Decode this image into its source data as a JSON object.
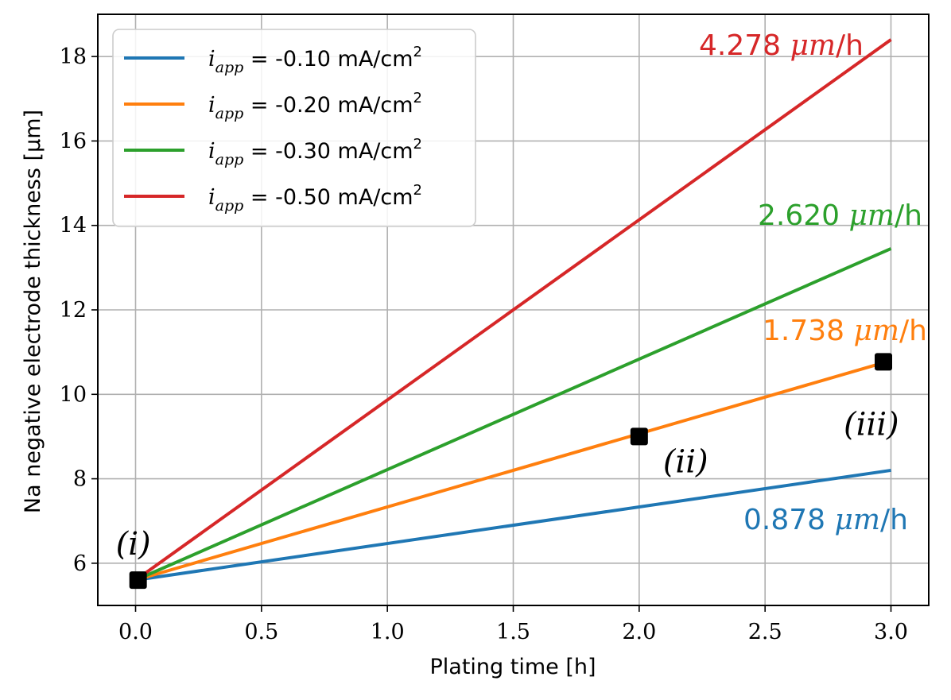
{
  "chart_data": {
    "type": "line",
    "xlabel": "Plating time [h]",
    "ylabel": "Na negative electrode thickness [μm]",
    "xlim": [
      -0.15,
      3.15
    ],
    "ylim": [
      5.0,
      19.0
    ],
    "xticks": [
      0.0,
      0.5,
      1.0,
      1.5,
      2.0,
      2.5,
      3.0
    ],
    "xtick_labels": [
      "0.0",
      "0.5",
      "1.0",
      "1.5",
      "2.0",
      "2.5",
      "3.0"
    ],
    "yticks": [
      6,
      8,
      10,
      12,
      14,
      16,
      18
    ],
    "ytick_labels": [
      "6",
      "8",
      "10",
      "12",
      "14",
      "16",
      "18"
    ],
    "grid": true,
    "legend_position": "top-left",
    "series": [
      {
        "name": "i_app = -0.10 mA/cm²",
        "legend_symbol": "i",
        "legend_subscript": "app",
        "legend_value": " = -0.10 mA/cm",
        "legend_sup": "2",
        "color": "#1f77b4",
        "x": [
          0.0,
          3.0
        ],
        "y": [
          5.6,
          8.2
        ],
        "rate_label": "0.878",
        "rate_unit_math": "μm",
        "rate_unit_text": "/h"
      },
      {
        "name": "i_app = -0.20 mA/cm²",
        "legend_symbol": "i",
        "legend_subscript": "app",
        "legend_value": " = -0.20 mA/cm",
        "legend_sup": "2",
        "color": "#ff7f0e",
        "x": [
          0.0,
          3.0
        ],
        "y": [
          5.6,
          10.8
        ],
        "rate_label": "1.738",
        "rate_unit_math": "μm",
        "rate_unit_text": "/h"
      },
      {
        "name": "i_app = -0.30 mA/cm²",
        "legend_symbol": "i",
        "legend_subscript": "app",
        "legend_value": " = -0.30 mA/cm",
        "legend_sup": "2",
        "color": "#2ca02c",
        "x": [
          0.0,
          3.0
        ],
        "y": [
          5.6,
          13.45
        ],
        "rate_label": "2.620",
        "rate_unit_math": "μm",
        "rate_unit_text": "/h"
      },
      {
        "name": "i_app = -0.50 mA/cm²",
        "legend_symbol": "i",
        "legend_subscript": "app",
        "legend_value": " = -0.50 mA/cm",
        "legend_sup": "2",
        "color": "#d62728",
        "x": [
          0.0,
          3.0
        ],
        "y": [
          5.6,
          18.4
        ],
        "rate_label": "4.278",
        "rate_unit_math": "μm",
        "rate_unit_text": "/h"
      }
    ],
    "markers": [
      {
        "label": "(i)",
        "x": 0.01,
        "y": 5.6
      },
      {
        "label": "(ii)",
        "x": 2.0,
        "y": 9.0
      },
      {
        "label": "(iii)",
        "x": 2.97,
        "y": 10.77
      }
    ]
  }
}
